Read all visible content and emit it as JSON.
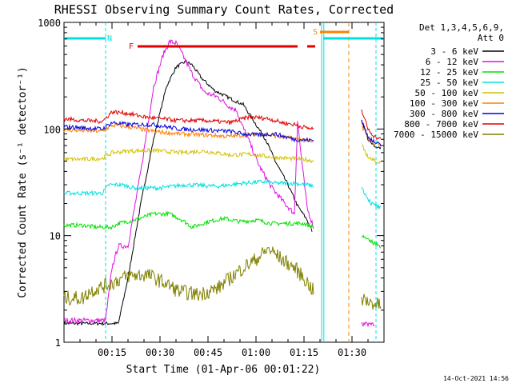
{
  "chart_data": {
    "type": "line",
    "title": "RHESSI Observing Summary Count Rates, Corrected",
    "xlabel": "Start Time (01-Apr-06 00:01:22)",
    "ylabel": "Corrected Count Rate (s⁻¹ detector⁻¹)",
    "yscale": "log",
    "xlim_minutes": [
      0,
      100
    ],
    "ylim": [
      1,
      1000
    ],
    "x_ticks": [
      {
        "minute": 15,
        "label": "00:15"
      },
      {
        "minute": 30,
        "label": "00:30"
      },
      {
        "minute": 45,
        "label": "00:45"
      },
      {
        "minute": 60,
        "label": "01:00"
      },
      {
        "minute": 75,
        "label": "01:15"
      },
      {
        "minute": 90,
        "label": "01:30"
      }
    ],
    "y_ticks": [
      {
        "value": 1,
        "label": "1"
      },
      {
        "value": 10,
        "label": "10"
      },
      {
        "value": 100,
        "label": "100"
      },
      {
        "value": 1000,
        "label": "1000"
      }
    ],
    "legend_header": [
      "Det 1,3,4,5,6,9,",
      "Att 0"
    ],
    "legend_position": "right",
    "series": [
      {
        "name": "3 - 6 keV",
        "color": "#000000",
        "points": [
          [
            0,
            1.5
          ],
          [
            17,
            1.5
          ],
          [
            20,
            4
          ],
          [
            24,
            20
          ],
          [
            28,
            80
          ],
          [
            32,
            250
          ],
          [
            35,
            380
          ],
          [
            38,
            430
          ],
          [
            40,
            400
          ],
          [
            43,
            300
          ],
          [
            47,
            230
          ],
          [
            51,
            200
          ],
          [
            54,
            180
          ],
          [
            56,
            170
          ],
          [
            60,
            110
          ],
          [
            63,
            80
          ],
          [
            66,
            50
          ],
          [
            70,
            30
          ],
          [
            73,
            19
          ],
          [
            76,
            14
          ],
          [
            77.5,
            11
          ]
        ]
      },
      {
        "name": "6 - 12 keV",
        "color": "#e010e0",
        "points": [
          [
            0,
            1.6
          ],
          [
            13,
            1.6
          ],
          [
            15,
            5
          ],
          [
            17,
            8
          ],
          [
            20,
            8
          ],
          [
            24,
            40
          ],
          [
            28,
            250
          ],
          [
            31,
            500
          ],
          [
            33,
            660
          ],
          [
            35,
            640
          ],
          [
            37,
            500
          ],
          [
            40,
            330
          ],
          [
            44,
            220
          ],
          [
            48,
            200
          ],
          [
            52,
            160
          ],
          [
            54,
            150
          ],
          [
            55,
            120
          ],
          [
            58,
            75
          ],
          [
            61,
            45
          ],
          [
            65,
            28
          ],
          [
            69,
            20
          ],
          [
            72,
            16
          ],
          [
            73,
            120
          ],
          [
            74,
            60
          ],
          [
            76,
            18
          ],
          [
            78,
            12
          ]
        ]
      },
      {
        "name": "12 - 25 keV",
        "color": "#00e000",
        "points": [
          [
            0,
            12.5
          ],
          [
            6,
            12.5
          ],
          [
            10,
            12
          ],
          [
            15,
            12
          ],
          [
            17,
            13
          ],
          [
            22,
            14
          ],
          [
            28,
            16
          ],
          [
            33,
            16
          ],
          [
            37,
            14
          ],
          [
            40,
            12
          ],
          [
            45,
            13.5
          ],
          [
            50,
            14.5
          ],
          [
            55,
            13.5
          ],
          [
            60,
            14
          ],
          [
            65,
            13
          ],
          [
            70,
            13
          ],
          [
            75,
            13
          ],
          [
            78,
            12
          ]
        ]
      },
      {
        "name": "25 - 50 keV",
        "color": "#00e0e0",
        "points": [
          [
            0,
            25
          ],
          [
            12,
            25
          ],
          [
            14,
            30
          ],
          [
            18,
            30
          ],
          [
            22,
            28
          ],
          [
            30,
            28
          ],
          [
            38,
            30
          ],
          [
            48,
            29
          ],
          [
            56,
            31
          ],
          [
            62,
            32
          ],
          [
            66,
            31
          ],
          [
            72,
            31
          ],
          [
            76,
            30
          ],
          [
            78,
            29
          ]
        ]
      },
      {
        "name": "50 - 100 keV",
        "color": "#d4c000",
        "points": [
          [
            0,
            52
          ],
          [
            6,
            52
          ],
          [
            12,
            53
          ],
          [
            15,
            60
          ],
          [
            20,
            62
          ],
          [
            28,
            63
          ],
          [
            36,
            60
          ],
          [
            44,
            62
          ],
          [
            52,
            57
          ],
          [
            58,
            58
          ],
          [
            64,
            55
          ],
          [
            70,
            53
          ],
          [
            75,
            52
          ],
          [
            78,
            50
          ]
        ]
      },
      {
        "name": "100 - 300 keV",
        "color": "#ff8000",
        "points": [
          [
            0,
            98
          ],
          [
            12,
            95
          ],
          [
            15,
            108
          ],
          [
            20,
            105
          ],
          [
            28,
            95
          ],
          [
            36,
            90
          ],
          [
            44,
            88
          ],
          [
            52,
            85
          ],
          [
            56,
            88
          ],
          [
            62,
            90
          ],
          [
            68,
            84
          ],
          [
            74,
            80
          ],
          [
            78,
            75
          ]
        ]
      },
      {
        "name": "300 - 800 keV",
        "color": "#0000e0",
        "points": [
          [
            0,
            105
          ],
          [
            12,
            100
          ],
          [
            15,
            115
          ],
          [
            20,
            110
          ],
          [
            28,
            110
          ],
          [
            36,
            100
          ],
          [
            44,
            98
          ],
          [
            52,
            95
          ],
          [
            56,
            90
          ],
          [
            60,
            88
          ],
          [
            66,
            90
          ],
          [
            72,
            80
          ],
          [
            78,
            78
          ]
        ]
      },
      {
        "name": "800 - 7000 keV",
        "color": "#e00000",
        "points": [
          [
            0,
            125
          ],
          [
            6,
            120
          ],
          [
            12,
            118
          ],
          [
            15,
            145
          ],
          [
            20,
            140
          ],
          [
            25,
            130
          ],
          [
            30,
            125
          ],
          [
            36,
            120
          ],
          [
            44,
            120
          ],
          [
            52,
            115
          ],
          [
            58,
            130
          ],
          [
            64,
            125
          ],
          [
            68,
            115
          ],
          [
            72,
            110
          ],
          [
            76,
            102
          ],
          [
            78,
            100
          ]
        ]
      },
      {
        "name": "7000 - 15000 keV",
        "color": "#808000",
        "points": [
          [
            0,
            2.6
          ],
          [
            6,
            2.6
          ],
          [
            8,
            3
          ],
          [
            14,
            3.5
          ],
          [
            20,
            4.2
          ],
          [
            26,
            4.3
          ],
          [
            30,
            3.8
          ],
          [
            36,
            3
          ],
          [
            42,
            2.8
          ],
          [
            48,
            3.2
          ],
          [
            52,
            4
          ],
          [
            56,
            5
          ],
          [
            60,
            6
          ],
          [
            64,
            7.5
          ],
          [
            68,
            6
          ],
          [
            72,
            5
          ],
          [
            75,
            4
          ],
          [
            78,
            3
          ]
        ]
      }
    ],
    "post_gap_series": [
      {
        "name": "3 - 6 keV",
        "color": "#000000",
        "points": [
          [
            93,
            120
          ],
          [
            95,
            80
          ],
          [
            97,
            70
          ],
          [
            99,
            65
          ]
        ]
      },
      {
        "name": "6 - 12 keV",
        "color": "#e010e0",
        "points": [
          [
            93,
            1.5
          ],
          [
            97,
            1.5
          ]
        ]
      },
      {
        "name": "12 - 25 keV",
        "color": "#00e000",
        "points": [
          [
            93,
            10
          ],
          [
            95,
            9
          ],
          [
            97,
            8.5
          ],
          [
            99,
            8
          ]
        ]
      },
      {
        "name": "25 - 50 keV",
        "color": "#00e0e0",
        "points": [
          [
            93,
            28
          ],
          [
            96,
            20
          ],
          [
            99,
            18
          ]
        ]
      },
      {
        "name": "50 - 100 keV",
        "color": "#d4c000",
        "points": [
          [
            93,
            70
          ],
          [
            95,
            55
          ],
          [
            97,
            50
          ],
          [
            99,
            48
          ]
        ]
      },
      {
        "name": "100 - 300 keV",
        "color": "#ff8000",
        "points": [
          [
            93,
            110
          ],
          [
            95,
            80
          ],
          [
            97,
            75
          ],
          [
            99,
            72
          ]
        ]
      },
      {
        "name": "300 - 800 keV",
        "color": "#0000e0",
        "points": [
          [
            93,
            120
          ],
          [
            95,
            85
          ],
          [
            97,
            75
          ],
          [
            99,
            70
          ]
        ]
      },
      {
        "name": "800 - 7000 keV",
        "color": "#e00000",
        "points": [
          [
            93,
            150
          ],
          [
            95,
            100
          ],
          [
            97,
            85
          ],
          [
            99,
            80
          ]
        ]
      },
      {
        "name": "7000 - 15000 keV",
        "color": "#808000",
        "points": [
          [
            93,
            2.5
          ],
          [
            97,
            2.3
          ],
          [
            99,
            2.2
          ]
        ]
      }
    ],
    "flag_markers": {
      "N_label": "N",
      "F_label": "F",
      "S_label": "S",
      "N_bars": [
        [
          0,
          13
        ],
        [
          81,
          100
        ]
      ],
      "F_bars": [
        [
          23,
          73
        ],
        [
          76,
          78.5
        ]
      ],
      "S_bar": [
        80,
        89
      ]
    }
  },
  "timestamp": "14-Oct-2021 14:56"
}
